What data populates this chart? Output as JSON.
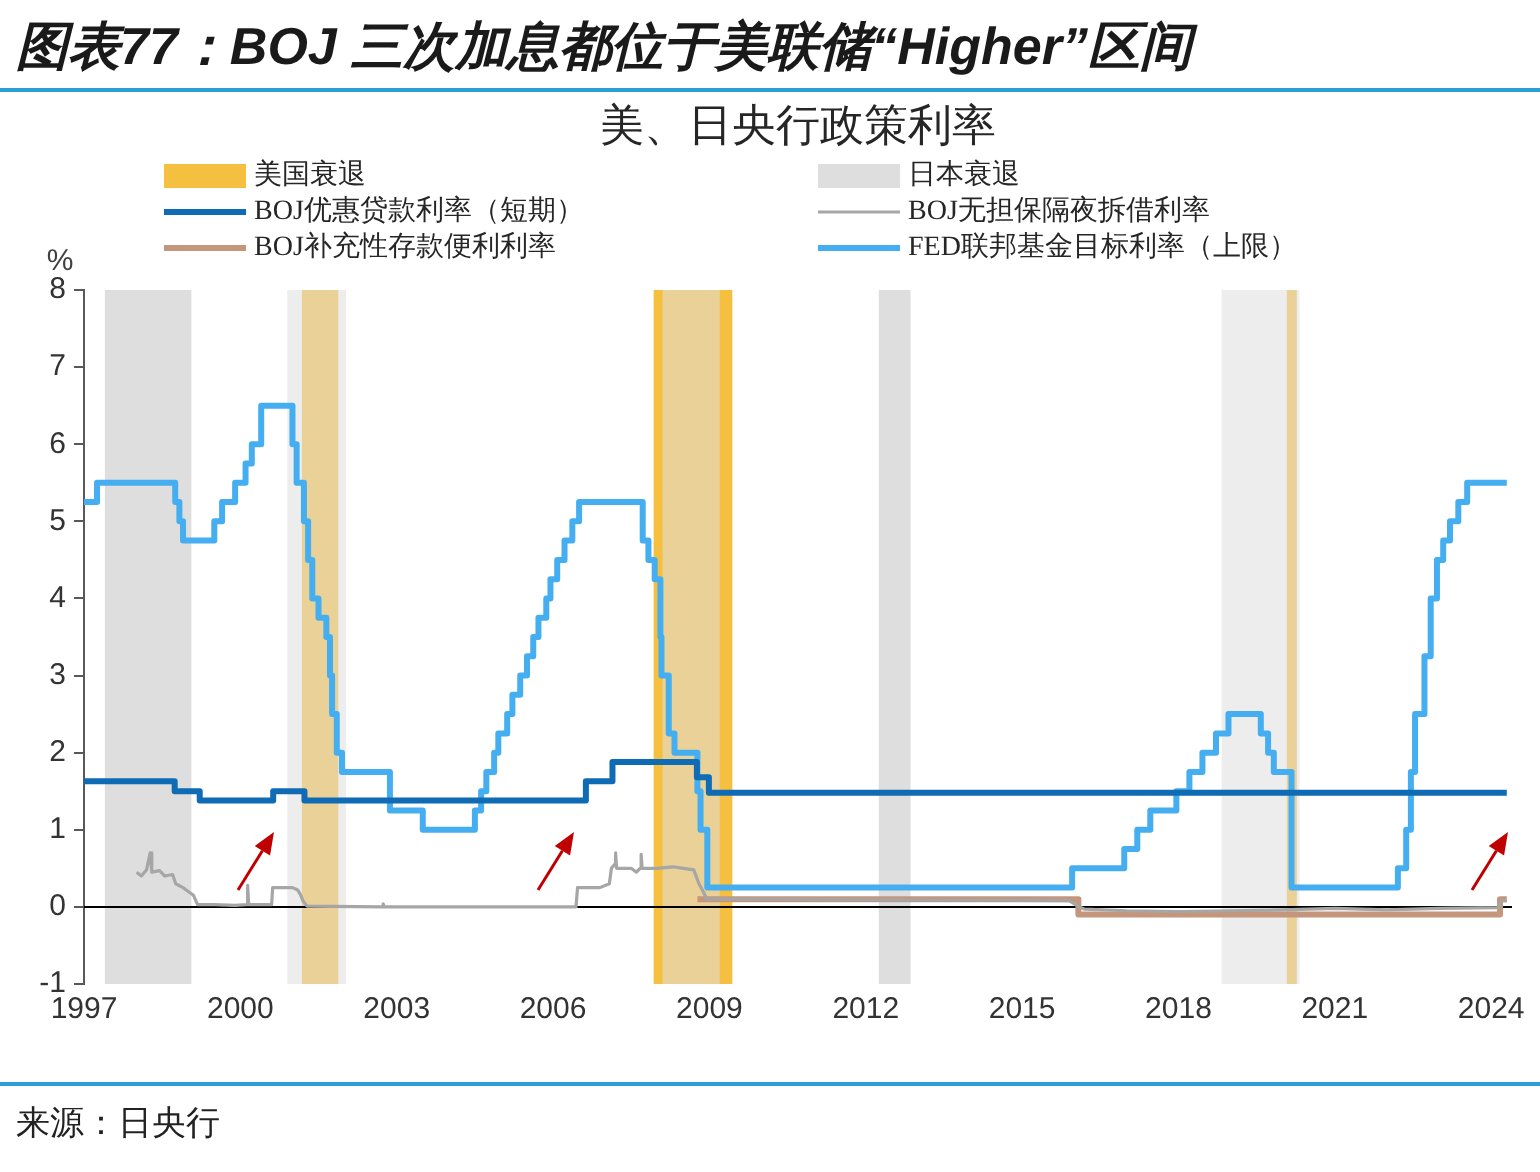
{
  "chart_data": {
    "type": "step",
    "title": "图表77：BOJ 三次加息都位于美联储“Higher”区间",
    "subtitle": "美、日央行政策利率",
    "ylabel": "%",
    "annotations": [
      "来源：日央行"
    ],
    "xlim": [
      1997,
      2024.4
    ],
    "xticks": [
      1997,
      2000,
      2003,
      2006,
      2009,
      2012,
      2015,
      2018,
      2021,
      2024
    ],
    "ylim": [
      -1,
      8
    ],
    "yticks": [
      -1,
      0,
      1,
      2,
      3,
      4,
      5,
      6,
      7,
      8
    ],
    "legend": "top",
    "series": [
      {
        "name": "BOJ优惠贷款利率（短期）",
        "color": "#0e6bb4",
        "x": [
          1997.0,
          1998.74,
          1999.22,
          2000.63,
          2001.23,
          2006.63,
          2007.14,
          2008.76,
          2008.99,
          2024.3
        ],
        "values": [
          1.63,
          1.5,
          1.38,
          1.5,
          1.38,
          1.63,
          1.88,
          1.68,
          1.48,
          1.48
        ]
      },
      {
        "name": "BOJ无担保隔夜拆借利率",
        "type": "line",
        "color": "#a6a6a6",
        "x": [
          1998.01,
          1998.1,
          1998.2,
          1998.27,
          1998.3,
          1998.45,
          1998.55,
          1998.7,
          1998.76,
          1998.9,
          1999.0,
          1999.1,
          1999.18,
          1999.5,
          1999.9,
          2000.12,
          2000.14,
          2000.16,
          2000.6,
          2000.62,
          2001.0,
          2001.1,
          2001.16,
          2001.2,
          2001.28,
          2002.72,
          2002.74,
          2002.76,
          2006.44,
          2006.47,
          2006.9,
          2007.08,
          2007.12,
          2007.18,
          2007.2,
          2007.22,
          2007.5,
          2007.6,
          2007.67,
          2007.69,
          2007.71,
          2008.0,
          2008.3,
          2008.5,
          2008.7,
          2008.8,
          2008.88,
          2008.95,
          2009.5,
          2015.9,
          2016.1,
          2016.2,
          2017.0,
          2018.0,
          2019.0,
          2020.0,
          2021.0,
          2022.0,
          2023.0,
          2024.15,
          2024.2,
          2024.3
        ],
        "values": [
          0.45,
          0.4,
          0.48,
          0.7,
          0.45,
          0.47,
          0.4,
          0.42,
          0.3,
          0.25,
          0.2,
          0.15,
          0.03,
          0.03,
          0.02,
          0.03,
          0.28,
          0.03,
          0.03,
          0.25,
          0.25,
          0.22,
          0.15,
          0.08,
          0.01,
          0.0,
          0.04,
          0.0,
          0.0,
          0.25,
          0.25,
          0.3,
          0.5,
          0.55,
          0.7,
          0.5,
          0.5,
          0.45,
          0.5,
          0.68,
          0.5,
          0.5,
          0.52,
          0.5,
          0.48,
          0.3,
          0.2,
          0.1,
          0.1,
          0.08,
          0.0,
          -0.03,
          -0.05,
          -0.06,
          -0.05,
          -0.04,
          -0.02,
          -0.04,
          -0.02,
          -0.01,
          0.08,
          0.08
        ]
      },
      {
        "name": "BOJ补充性存款便利利率",
        "color": "#c4967c",
        "x": [
          2008.77,
          2016.08,
          2024.17,
          2024.3
        ],
        "values": [
          0.1,
          -0.1,
          0.1,
          0.1
        ]
      },
      {
        "name": "FED联邦基金目标利率（上限）",
        "color": "#45aef0",
        "x": [
          1997.0,
          1997.25,
          1998.75,
          1998.83,
          1998.9,
          1999.5,
          1999.65,
          1999.9,
          2000.1,
          2000.22,
          2000.4,
          2001.0,
          2001.08,
          2001.22,
          2001.3,
          2001.38,
          2001.5,
          2001.65,
          2001.72,
          2001.76,
          2001.85,
          2001.95,
          2002.87,
          2003.5,
          2004.5,
          2004.62,
          2004.72,
          2004.87,
          2004.95,
          2005.12,
          2005.22,
          2005.37,
          2005.5,
          2005.62,
          2005.72,
          2005.87,
          2005.95,
          2006.08,
          2006.22,
          2006.37,
          2006.5,
          2007.72,
          2007.83,
          2007.95,
          2008.06,
          2008.08,
          2008.22,
          2008.33,
          2008.77,
          2008.83,
          2008.96,
          2015.96,
          2016.96,
          2017.21,
          2017.46,
          2017.96,
          2018.21,
          2018.46,
          2018.72,
          2018.96,
          2019.58,
          2019.72,
          2019.83,
          2020.17,
          2022.21,
          2022.37,
          2022.46,
          2022.54,
          2022.72,
          2022.84,
          2022.96,
          2023.08,
          2023.21,
          2023.37,
          2023.54,
          2024.3
        ],
        "values": [
          5.25,
          5.5,
          5.25,
          5.0,
          4.75,
          5.0,
          5.25,
          5.5,
          5.75,
          6.0,
          6.5,
          6.0,
          5.5,
          5.0,
          4.5,
          4.0,
          3.75,
          3.5,
          3.0,
          2.5,
          2.0,
          1.75,
          1.25,
          1.0,
          1.25,
          1.5,
          1.75,
          2.0,
          2.25,
          2.5,
          2.75,
          3.0,
          3.25,
          3.5,
          3.75,
          4.0,
          4.25,
          4.5,
          4.75,
          5.0,
          5.25,
          4.75,
          4.5,
          4.25,
          3.5,
          3.0,
          2.25,
          2.0,
          1.5,
          1.0,
          0.25,
          0.5,
          0.75,
          1.0,
          1.25,
          1.5,
          1.75,
          2.0,
          2.25,
          2.5,
          2.25,
          2.0,
          1.75,
          0.25,
          0.5,
          1.0,
          1.75,
          2.5,
          3.25,
          4.0,
          4.5,
          4.75,
          5.0,
          5.25,
          5.5,
          5.5
        ]
      }
    ],
    "bands": [
      {
        "axis": "x",
        "from": 2001.18,
        "to": 2001.88,
        "label": "美国衰退",
        "color": "#f5c040"
      },
      {
        "axis": "x",
        "from": 2007.93,
        "to": 2009.44,
        "color": "#f5c040"
      },
      {
        "axis": "x",
        "from": 2020.08,
        "to": 2020.27,
        "color": "#f5c040"
      },
      {
        "axis": "x",
        "from": 1997.4,
        "to": 1999.06,
        "label": "日本衰退",
        "color": "#dedede"
      },
      {
        "axis": "x",
        "from": 2000.9,
        "to": 2002.03,
        "color": "#dedede"
      },
      {
        "axis": "x",
        "from": 2008.1,
        "to": 2009.2,
        "color": "#dedede"
      },
      {
        "axis": "x",
        "from": 2012.25,
        "to": 2012.86,
        "color": "#dedede"
      },
      {
        "axis": "x",
        "from": 2018.83,
        "to": 2020.32,
        "color": "#dedede"
      }
    ],
    "ref_lines": [
      {
        "axis": "y",
        "value": 0,
        "color": "#000000"
      }
    ]
  }
}
